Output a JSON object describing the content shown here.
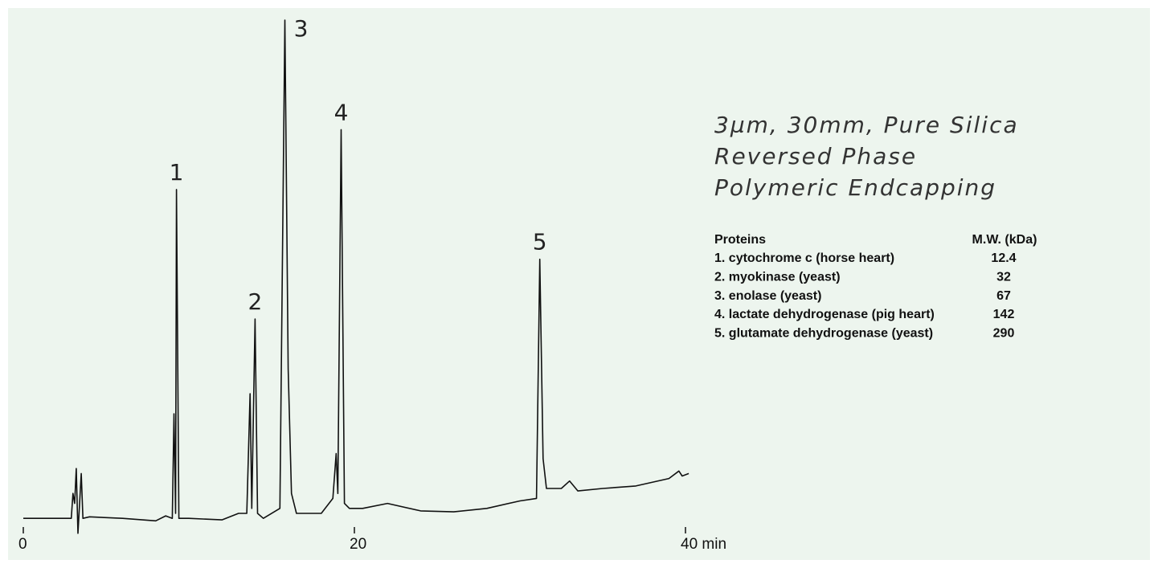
{
  "chart_data": {
    "type": "line",
    "color": "#111111",
    "x": [
      0,
      2.9,
      3.0,
      3.1,
      3.2,
      3.3,
      3.5,
      3.6,
      4,
      6,
      8,
      8.6,
      9.0,
      9.1,
      9.2,
      9.25,
      9.4,
      10,
      12,
      13.0,
      13.5,
      13.7,
      13.8,
      14.0,
      14.15,
      14.5,
      15.5,
      15.8,
      16.0,
      16.2,
      16.5,
      18.0,
      18.7,
      18.9,
      19.0,
      19.2,
      19.4,
      19.7,
      20.5,
      22,
      24,
      26,
      28,
      30,
      31.0,
      31.2,
      31.4,
      31.6,
      32.5,
      33.0,
      33.5,
      35,
      37,
      39,
      39.6,
      39.8,
      40.2
    ],
    "values": [
      0,
      0,
      5,
      3,
      10,
      -3,
      9,
      0,
      0.3,
      0,
      -0.5,
      0.5,
      0,
      21,
      1,
      66,
      0,
      0,
      -0.3,
      1,
      1,
      25,
      2,
      40,
      1,
      0,
      2,
      100,
      30,
      5,
      1,
      1,
      4,
      13,
      5,
      78,
      3,
      2,
      2,
      3,
      1.5,
      1.3,
      2,
      3.5,
      4,
      52,
      12,
      6,
      6,
      7.5,
      5.5,
      6,
      6.5,
      8,
      9.5,
      8.5,
      9
    ],
    "xlim": [
      0,
      40
    ],
    "ylim": [
      -4,
      100
    ],
    "xticks": [
      0,
      20,
      {
        "value": 40,
        "label": "40 min"
      }
    ],
    "annotations": [
      {
        "text": "1",
        "x": 9.25,
        "y": 66
      },
      {
        "text": "2",
        "x": 14.0,
        "y": 40
      },
      {
        "text": "3",
        "x": 15.8,
        "y": 100
      },
      {
        "text": "4",
        "x": 19.2,
        "y": 78
      },
      {
        "text": "5",
        "x": 31.2,
        "y": 52
      }
    ],
    "description": [
      "3µm, 30mm, Pure Silica",
      "Reversed Phase",
      "Polymeric Endcapping"
    ],
    "legend_table": {
      "header": [
        "Proteins",
        "M.W. (kDa)"
      ],
      "rows": [
        [
          "1. cytochrome c (horse heart)",
          "12.4"
        ],
        [
          "2. myokinase (yeast)",
          "32"
        ],
        [
          "3. enolase (yeast)",
          "67"
        ],
        [
          "4. lactate dehydrogenase (pig heart)",
          "142"
        ],
        [
          "5. glutamate dehydrogenase (yeast)",
          "290"
        ]
      ]
    }
  }
}
